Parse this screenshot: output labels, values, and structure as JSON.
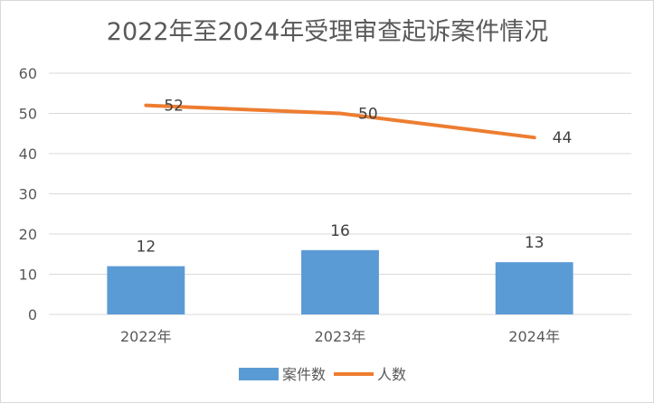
{
  "chart_data": {
    "type": "bar",
    "title": "2022年至2024年受理审查起诉案件情况",
    "categories": [
      "2022年",
      "2023年",
      "2024年"
    ],
    "ylim": [
      0,
      60
    ],
    "yticks": [
      0,
      10,
      20,
      30,
      40,
      50,
      60
    ],
    "grid": true,
    "legend_position": "bottom",
    "series": [
      {
        "name": "案件数",
        "type": "bar",
        "values": [
          12,
          16,
          13
        ],
        "color": "#5b9bd5"
      },
      {
        "name": "人数",
        "type": "line",
        "values": [
          52,
          50,
          44
        ],
        "color": "#ed7d31"
      }
    ]
  }
}
